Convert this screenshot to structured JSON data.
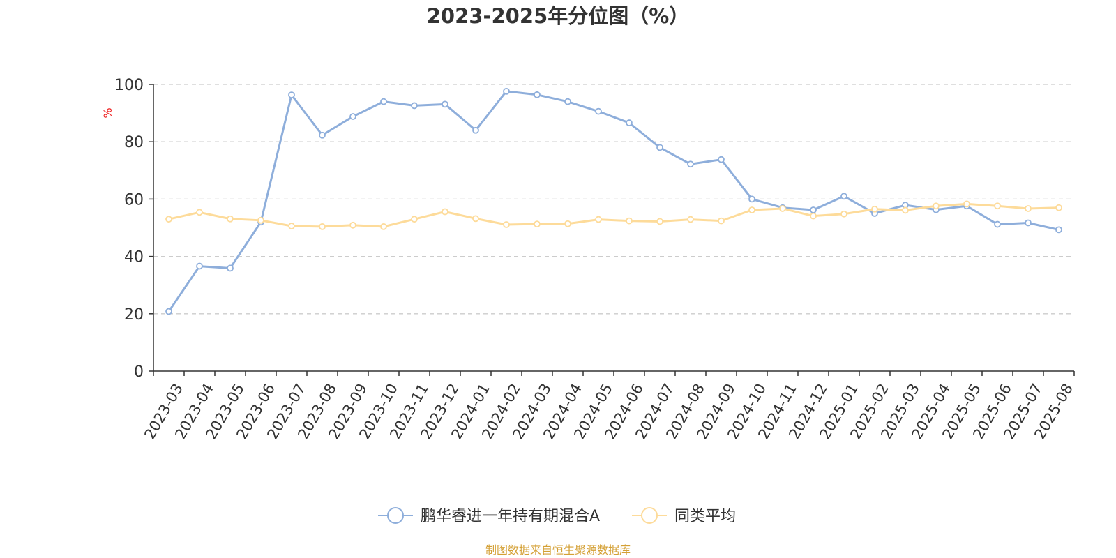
{
  "chart_data": {
    "type": "line",
    "title": "2023-2025年分位图（%）",
    "ylabel": "%",
    "ylim": [
      0,
      100
    ],
    "yticks": [
      "0",
      "20",
      "40",
      "60",
      "80",
      "100"
    ],
    "grid": true,
    "legend_position": "bottom",
    "x": [
      "2023-03",
      "2023-04",
      "2023-05",
      "2023-06",
      "2023-07",
      "2023-08",
      "2023-09",
      "2023-10",
      "2023-11",
      "2023-12",
      "2024-01",
      "2024-02",
      "2024-03",
      "2024-04",
      "2024-05",
      "2024-06",
      "2024-07",
      "2024-08",
      "2024-09",
      "2024-10",
      "2024-11",
      "2024-12",
      "2025-01",
      "2025-02",
      "2025-03",
      "2025-04",
      "2025-05",
      "2025-06",
      "2025-07",
      "2025-08"
    ],
    "series": [
      {
        "name": "鹏华睿进一年持有期混合A",
        "color": "#8eaedb",
        "values": [
          20.8,
          36.6,
          35.9,
          52.0,
          96.3,
          82.3,
          88.8,
          94.0,
          92.6,
          93.1,
          84.0,
          97.6,
          96.4,
          94.0,
          90.6,
          86.6,
          78.0,
          72.2,
          73.8,
          60.0,
          57.0,
          56.2,
          61.0,
          55.0,
          57.9,
          56.3,
          57.6,
          51.2,
          51.7,
          49.3
        ]
      },
      {
        "name": "同类平均",
        "color": "#fddb9a",
        "values": [
          53.0,
          55.4,
          53.1,
          52.6,
          50.6,
          50.4,
          50.9,
          50.4,
          53.0,
          55.6,
          53.2,
          51.1,
          51.3,
          51.4,
          52.9,
          52.4,
          52.2,
          52.9,
          52.4,
          56.2,
          56.7,
          54.1,
          54.8,
          56.5,
          56.1,
          57.6,
          58.3,
          57.6,
          56.7,
          57.0
        ]
      }
    ]
  },
  "colors": {
    "axis": "#333333",
    "grid": "#cccccc",
    "unit_label": "#ee2222",
    "source": "#d4a035"
  },
  "source_text": "制图数据来自恒生聚源数据库"
}
